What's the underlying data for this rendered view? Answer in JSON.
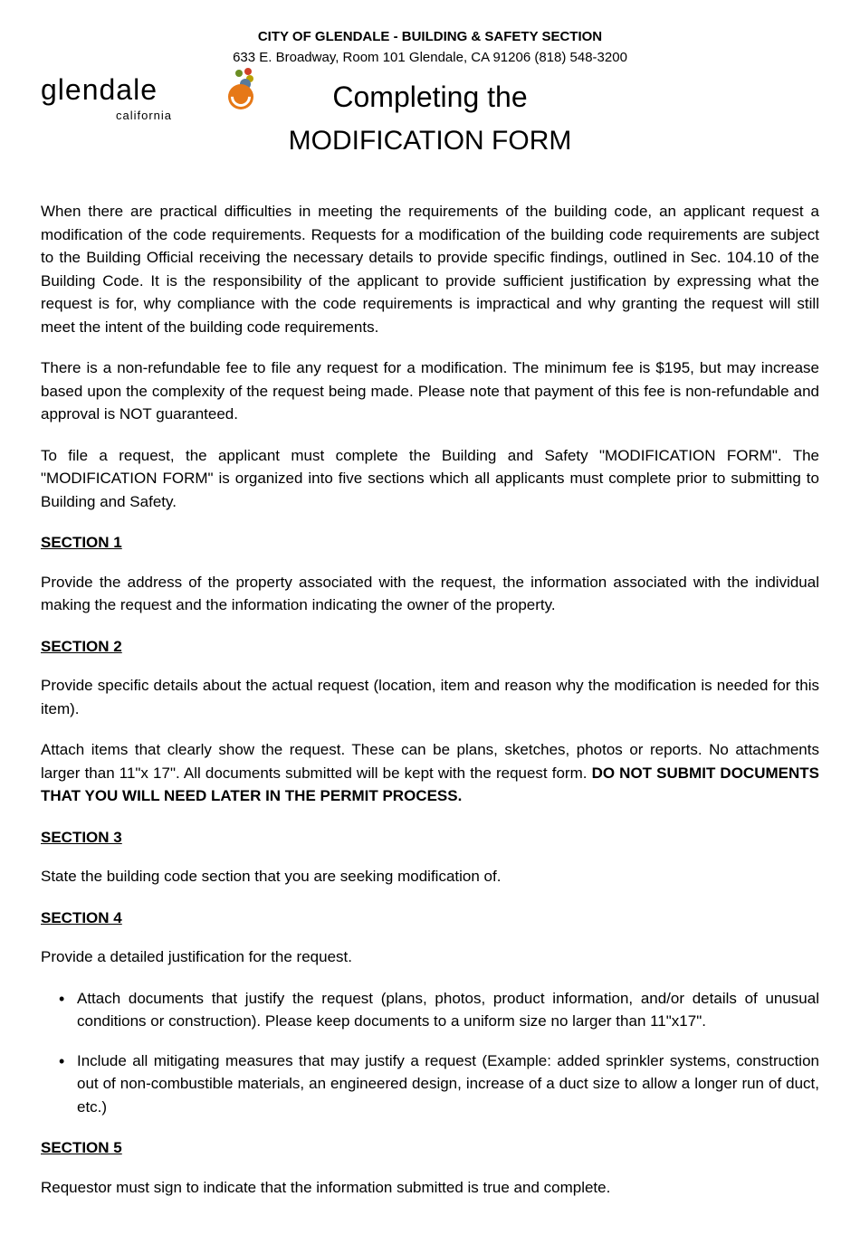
{
  "header": {
    "org_line": "CITY OF GLENDALE - BUILDING & SAFETY SECTION",
    "address_line": "633 E. Broadway, Room 101 Glendale, CA 91206    (818) 548-3200",
    "title_line1": "Completing the",
    "title_line2": "MODIFICATION FORM"
  },
  "logo": {
    "main_text": "glendale",
    "sub_text": "california",
    "colors": {
      "orange_swirl": "#e67817",
      "red": "#d14028",
      "olive": "#6b8e23",
      "mustard": "#b8a000",
      "blue": "#5a7a9a"
    }
  },
  "paragraphs": {
    "intro1": "When there are practical difficulties in meeting the requirements of the building code, an applicant request a modification of the code requirements. Requests for a modification of the building code requirements are subject to the Building Official receiving the necessary details to provide specific findings, outlined in Sec. 104.10 of the Building Code. It is the responsibility of the applicant to provide sufficient justification by expressing what the request is for, why compliance with the code requirements is impractical and why granting the request will still meet the intent of the building code requirements.",
    "intro2": "There is a non-refundable fee to file any request for a modification. The minimum fee is $195, but may increase based upon the complexity of the request being made. Please note that payment of this fee is non-refundable and approval is NOT guaranteed.",
    "intro3": "To file a request, the applicant must complete the Building and Safety \"MODIFICATION FORM\".  The \"MODIFICATION FORM\" is organized into five sections which all applicants must complete prior to submitting to Building and Safety."
  },
  "sections": {
    "s1": {
      "heading": "SECTION 1",
      "text": "Provide the address of the property associated with the request, the information associated with the individual making the request and the information indicating the owner of the property."
    },
    "s2": {
      "heading": "SECTION 2",
      "text1": "Provide specific details about the actual request (location, item and reason why the modification is needed for this item).",
      "text2_part1": "Attach items that clearly show the request.  These can be plans, sketches, photos or reports. No attachments larger than 11\"x 17\". All documents submitted will be kept with the request form. ",
      "text2_bold": "DO NOT SUBMIT DOCUMENTS THAT YOU WILL NEED LATER IN THE PERMIT PROCESS."
    },
    "s3": {
      "heading": "SECTION 3",
      "text": "State the building code section that you are seeking modification of."
    },
    "s4": {
      "heading": "SECTION 4",
      "text": "Provide a detailed justification for the request.",
      "bullet1": "Attach documents that justify the request (plans, photos, product information, and/or details of unusual conditions or construction). Please keep documents to a uniform size no larger than 11\"x17\".",
      "bullet2": "Include all mitigating measures that may justify a request (Example: added sprinkler systems, construction out of non-combustible materials, an engineered design, increase of a duct size to allow a longer run of duct, etc.)"
    },
    "s5": {
      "heading": "SECTION 5",
      "text": "Requestor must sign to indicate that the information submitted is true and complete."
    }
  }
}
